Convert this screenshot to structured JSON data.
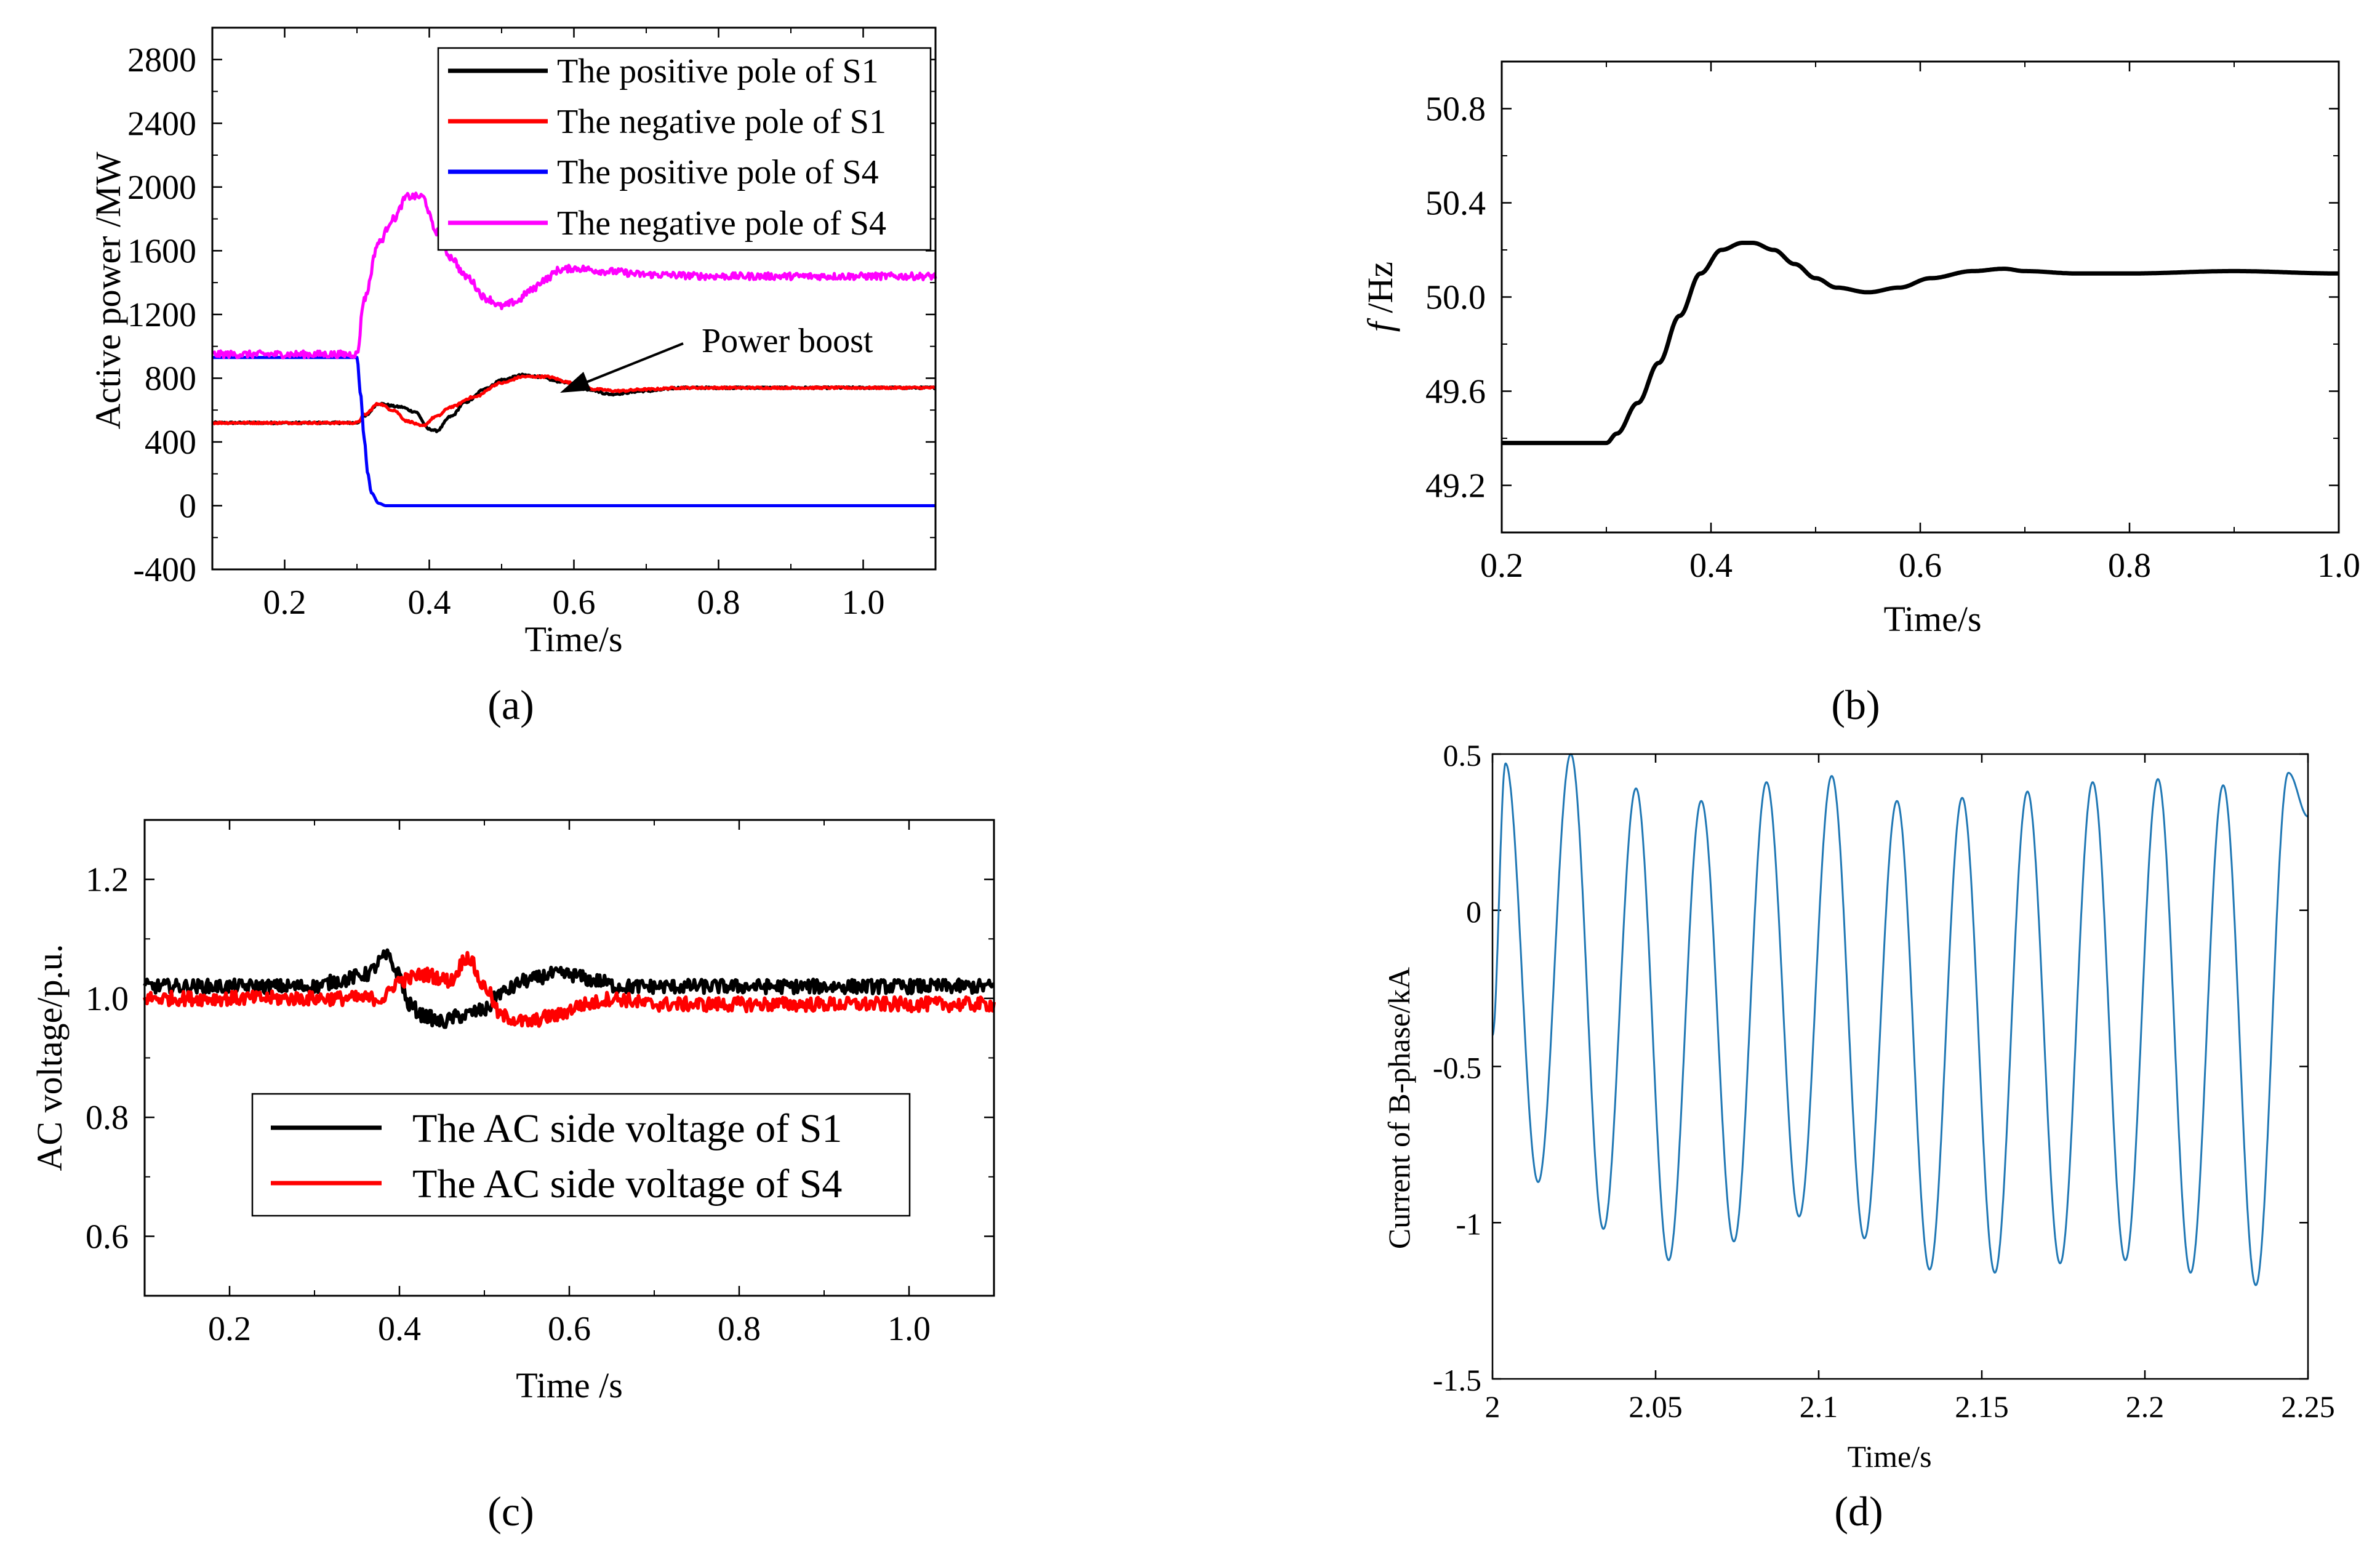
{
  "chart_data": [
    {
      "panel": "(a)",
      "type": "line",
      "xlabel": "Time/s",
      "ylabel": "Active power /MW",
      "xlim": [
        0.1,
        1.1
      ],
      "ylim": [
        -400,
        3000
      ],
      "xticks": [
        0.2,
        0.4,
        0.6,
        0.8,
        1.0
      ],
      "xtick_labels": [
        "0.2",
        "0.4",
        "0.6",
        "0.8",
        "1.0"
      ],
      "yticks": [
        -400,
        0,
        400,
        800,
        1200,
        1600,
        2000,
        2400,
        2800
      ],
      "ytick_labels": [
        "-400",
        "0",
        "400",
        "800",
        "1200",
        "1600",
        "2000",
        "2400",
        "2800"
      ],
      "legend_position": "top-right",
      "annotation": {
        "text": "Power boost",
        "x": 0.57,
        "y": 800
      },
      "series": [
        {
          "name": "The positive pole of S1",
          "color": "#000000",
          "noise": 6,
          "x": [
            0.1,
            0.3,
            0.31,
            0.33,
            0.36,
            0.38,
            0.4,
            0.41,
            0.43,
            0.45,
            0.48,
            0.5,
            0.53,
            0.55,
            0.58,
            0.62,
            0.65,
            0.7,
            0.75,
            0.8,
            1.1
          ],
          "y": [
            520,
            520,
            560,
            640,
            620,
            590,
            480,
            470,
            560,
            650,
            740,
            790,
            820,
            810,
            780,
            730,
            700,
            720,
            740,
            740,
            740
          ]
        },
        {
          "name": "The negative pole of S1",
          "color": "#ff0000",
          "noise": 6,
          "x": [
            0.1,
            0.3,
            0.31,
            0.33,
            0.35,
            0.37,
            0.39,
            0.41,
            0.43,
            0.46,
            0.5,
            0.53,
            0.56,
            0.6,
            0.63,
            0.66,
            0.7,
            0.75,
            1.1
          ],
          "y": [
            520,
            520,
            570,
            640,
            600,
            530,
            500,
            560,
            620,
            680,
            770,
            810,
            810,
            770,
            730,
            720,
            730,
            740,
            740
          ]
        },
        {
          "name": "The positive pole of S4",
          "color": "#0000ff",
          "noise": 0,
          "x": [
            0.1,
            0.3,
            0.305,
            0.31,
            0.315,
            0.32,
            0.33,
            0.34,
            1.1
          ],
          "y": [
            930,
            930,
            700,
            420,
            200,
            80,
            15,
            0,
            0
          ]
        },
        {
          "name": "The negative pole of S4",
          "color": "#ff00ff",
          "noise": 22,
          "x": [
            0.1,
            0.3,
            0.31,
            0.33,
            0.35,
            0.37,
            0.39,
            0.41,
            0.43,
            0.45,
            0.48,
            0.5,
            0.52,
            0.54,
            0.56,
            0.58,
            0.6,
            0.65,
            0.7,
            0.8,
            1.1
          ],
          "y": [
            950,
            950,
            1300,
            1650,
            1800,
            1940,
            1940,
            1720,
            1560,
            1440,
            1300,
            1250,
            1280,
            1350,
            1420,
            1480,
            1490,
            1470,
            1450,
            1440,
            1440
          ]
        }
      ]
    },
    {
      "panel": "(b)",
      "type": "line",
      "xlabel": "Time/s",
      "ylabel_italic": "f",
      "ylabel_rest": " /Hz",
      "xlim": [
        0.2,
        1.0
      ],
      "ylim": [
        49.0,
        51.0
      ],
      "xticks": [
        0.2,
        0.4,
        0.6,
        0.8,
        1.0
      ],
      "xtick_labels": [
        "0.2",
        "0.4",
        "0.6",
        "0.8",
        "1.0"
      ],
      "yticks": [
        49.2,
        49.6,
        50.0,
        50.4,
        50.8
      ],
      "ytick_labels": [
        "49.2",
        "49.6",
        "50.0",
        "50.4",
        "50.8"
      ],
      "series": [
        {
          "color": "#000000",
          "x": [
            0.2,
            0.28,
            0.3,
            0.31,
            0.33,
            0.35,
            0.37,
            0.39,
            0.41,
            0.43,
            0.44,
            0.46,
            0.48,
            0.5,
            0.52,
            0.55,
            0.58,
            0.61,
            0.65,
            0.68,
            0.7,
            0.75,
            0.8,
            0.9,
            1.0
          ],
          "y": [
            49.38,
            49.38,
            49.38,
            49.42,
            49.55,
            49.72,
            49.92,
            50.1,
            50.2,
            50.23,
            50.23,
            50.2,
            50.14,
            50.08,
            50.04,
            50.02,
            50.04,
            50.08,
            50.11,
            50.12,
            50.11,
            50.1,
            50.1,
            50.11,
            50.1
          ]
        }
      ]
    },
    {
      "panel": "(c)",
      "type": "line",
      "xlabel": "Time /s",
      "ylabel": "AC voltage/p.u.",
      "xlim": [
        0.1,
        1.1
      ],
      "ylim": [
        0.5,
        1.3
      ],
      "xticks": [
        0.2,
        0.4,
        0.6,
        0.8,
        1.0
      ],
      "xtick_labels": [
        "0.2",
        "0.4",
        "0.6",
        "0.8",
        "1.0"
      ],
      "yticks": [
        0.6,
        0.8,
        1.0,
        1.2
      ],
      "ytick_labels": [
        "0.6",
        "0.8",
        "1.0",
        "1.2"
      ],
      "legend_position": "lower-left",
      "series": [
        {
          "name": "The AC side voltage of S1",
          "color": "#000000",
          "noise": 0.012,
          "x": [
            0.1,
            0.3,
            0.33,
            0.36,
            0.385,
            0.4,
            0.41,
            0.43,
            0.45,
            0.47,
            0.5,
            0.52,
            0.55,
            0.58,
            0.6,
            0.63,
            0.66,
            0.7,
            1.1
          ],
          "y": [
            1.02,
            1.02,
            1.03,
            1.04,
            1.07,
            1.04,
            0.99,
            0.97,
            0.96,
            0.97,
            0.98,
            1.01,
            1.03,
            1.04,
            1.04,
            1.03,
            1.02,
            1.02,
            1.02
          ]
        },
        {
          "name": "The AC side voltage of S4",
          "color": "#ff0000",
          "noise": 0.012,
          "x": [
            0.1,
            0.3,
            0.38,
            0.4,
            0.43,
            0.46,
            0.48,
            0.5,
            0.52,
            0.55,
            0.58,
            0.62,
            0.65,
            0.7,
            1.1
          ],
          "y": [
            1.0,
            1.0,
            1.0,
            1.03,
            1.04,
            1.03,
            1.07,
            1.02,
            0.97,
            0.96,
            0.97,
            0.99,
            1.0,
            0.99,
            0.99
          ]
        }
      ]
    },
    {
      "panel": "(d)",
      "type": "line",
      "xlabel": "Time/s",
      "ylabel": "Current of B-phase/kA",
      "xlim": [
        2.0,
        2.25
      ],
      "ylim": [
        -1.5,
        0.5
      ],
      "xticks": [
        2.0,
        2.05,
        2.1,
        2.15,
        2.2,
        2.25
      ],
      "xtick_labels": [
        "2",
        "2.05",
        "2.1",
        "2.15",
        "2.2",
        "2.25"
      ],
      "yticks": [
        -1.5,
        -1.0,
        -0.5,
        0.0,
        0.5
      ],
      "ytick_labels": [
        "-1.5",
        "-1",
        "-0.5",
        "0",
        "0.5"
      ],
      "series": [
        {
          "color": "#1f77b4",
          "waveform": "sinusoid",
          "frequency_hz": 50,
          "start_value": -0.4,
          "peaks_x": [
            2.004,
            2.024,
            2.044,
            2.064,
            2.084,
            2.104,
            2.124,
            2.144,
            2.164,
            2.184,
            2.204,
            2.224,
            2.244
          ],
          "peaks_y": [
            0.47,
            0.5,
            0.39,
            0.35,
            0.41,
            0.43,
            0.35,
            0.36,
            0.38,
            0.41,
            0.42,
            0.4,
            0.44
          ],
          "troughs_x": [
            2.014,
            2.034,
            2.054,
            2.074,
            2.094,
            2.114,
            2.134,
            2.154,
            2.174,
            2.194,
            2.214,
            2.234
          ],
          "troughs_y": [
            -0.87,
            -1.02,
            -1.12,
            -1.06,
            -0.98,
            -1.05,
            -1.15,
            -1.16,
            -1.13,
            -1.12,
            -1.16,
            -1.2
          ]
        }
      ]
    }
  ],
  "panel_labels": {
    "a": "(a)",
    "b": "(b)",
    "c": "(c)",
    "d": "(d)"
  }
}
